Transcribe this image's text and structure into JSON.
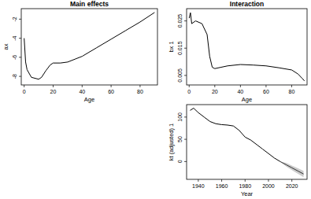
{
  "chart_data": [
    {
      "type": "line",
      "title": "Main effects",
      "xlabel": "Age",
      "ylabel": "ax",
      "x": [
        0,
        1,
        2,
        5,
        10,
        12,
        15,
        18,
        20,
        25,
        30,
        35,
        40,
        50,
        60,
        70,
        80,
        90
      ],
      "values": [
        -4.0,
        -6.5,
        -7.3,
        -8.1,
        -8.3,
        -8.1,
        -7.4,
        -6.8,
        -6.6,
        -6.6,
        -6.5,
        -6.2,
        -5.9,
        -5.0,
        -4.1,
        -3.2,
        -2.3,
        -1.3
      ],
      "color": "#000000",
      "xlim": [
        -2,
        92
      ],
      "ylim": [
        -8.9,
        -0.9
      ],
      "xticks": [
        0,
        20,
        40,
        60,
        80
      ],
      "yticks": [
        -8,
        -6,
        -4,
        -2
      ]
    },
    {
      "type": "line",
      "title": "Interaction",
      "xlabel": "Age",
      "ylabel": "bx 1",
      "x": [
        0,
        1,
        2,
        5,
        10,
        14,
        16,
        18,
        20,
        25,
        30,
        40,
        50,
        60,
        70,
        80,
        85,
        88,
        90
      ],
      "values": [
        0.026,
        0.028,
        0.024,
        0.025,
        0.024,
        0.02,
        0.012,
        0.008,
        0.0075,
        0.008,
        0.0085,
        0.009,
        0.0088,
        0.0085,
        0.0078,
        0.007,
        0.0055,
        0.004,
        0.003
      ],
      "color": "#000000",
      "xlim": [
        -2,
        92
      ],
      "ylim": [
        0.0015,
        0.0295
      ],
      "xticks": [
        0,
        20,
        40,
        60,
        80
      ],
      "yticks": [
        0.005,
        0.015,
        0.025
      ]
    },
    {
      "type": "line",
      "xlabel": "Year",
      "ylabel": "kt (adjusted) 1",
      "x": [
        1933,
        1936,
        1940,
        1945,
        1950,
        1955,
        1960,
        1965,
        1970,
        1975,
        1980,
        1985,
        1990,
        1995,
        2000,
        2005,
        2010,
        2015,
        2020,
        2025,
        2030
      ],
      "series": [
        {
          "color": "#000000",
          "values": [
            115,
            120,
            110,
            100,
            90,
            85,
            83,
            82,
            80,
            70,
            55,
            48,
            38,
            28,
            18,
            8,
            0,
            null,
            null,
            null,
            null
          ]
        },
        {
          "color": "#333333",
          "values": [
            null,
            null,
            null,
            null,
            null,
            null,
            null,
            null,
            null,
            null,
            null,
            null,
            null,
            null,
            null,
            null,
            0,
            -7,
            -14,
            -21,
            -28
          ],
          "lower": [
            null,
            null,
            null,
            null,
            null,
            null,
            null,
            null,
            null,
            null,
            null,
            null,
            null,
            null,
            null,
            null,
            0,
            -11,
            -19,
            -27,
            -35
          ],
          "upper": [
            null,
            null,
            null,
            null,
            null,
            null,
            null,
            null,
            null,
            null,
            null,
            null,
            null,
            null,
            null,
            null,
            0,
            -3,
            -9,
            -15,
            -21
          ]
        }
      ],
      "xlim": [
        1930,
        2033
      ],
      "ylim": [
        -40,
        128
      ],
      "xticks": [
        1940,
        1960,
        1980,
        2000,
        2020
      ],
      "yticks": [
        0,
        50,
        100
      ]
    }
  ]
}
